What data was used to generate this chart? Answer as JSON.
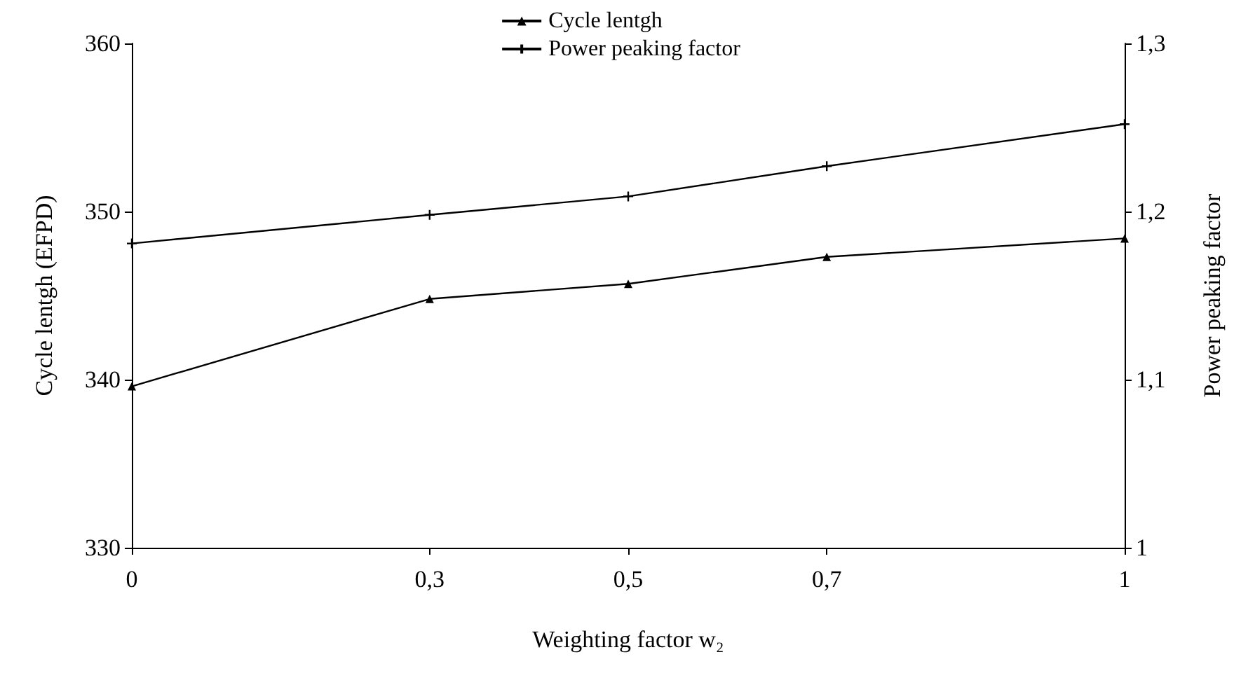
{
  "chart_data": {
    "type": "line",
    "xlabel": "Weighting factor w₂",
    "ylabel": "Cycle lentgh (EFPD)",
    "y2label": "Power peaking factor",
    "x": [
      0,
      0.3,
      0.5,
      0.7,
      1
    ],
    "series": [
      {
        "name": "Cycle lentgh",
        "color": "#000000",
        "marker": "triangle",
        "values": [
          339.6,
          344.8,
          345.7,
          347.3,
          348.4
        ]
      },
      {
        "name": "Power peaking factor",
        "color": "#000000",
        "marker": "cross",
        "axis": "y2",
        "values": [
          1.181,
          1.198,
          1.209,
          1.227,
          1.252
        ]
      }
    ],
    "xlim": [
      0,
      1
    ],
    "xticks": [
      {
        "value": 0,
        "label": "0"
      },
      {
        "value": 0.3,
        "label": "0,3"
      },
      {
        "value": 0.5,
        "label": "0,5"
      },
      {
        "value": 0.7,
        "label": "0,7"
      },
      {
        "value": 1,
        "label": "1"
      }
    ],
    "ylim": [
      330,
      360
    ],
    "yticks": [
      330,
      340,
      350,
      360
    ],
    "y2lim": [
      1,
      1.3
    ],
    "y2ticks": [
      {
        "value": 1,
        "label": "1"
      },
      {
        "value": 1.1,
        "label": "1,1"
      },
      {
        "value": 1.2,
        "label": "1,2"
      },
      {
        "value": 1.3,
        "label": "1,3"
      }
    ],
    "legend": "top",
    "grid": false,
    "line_style": "solid"
  }
}
